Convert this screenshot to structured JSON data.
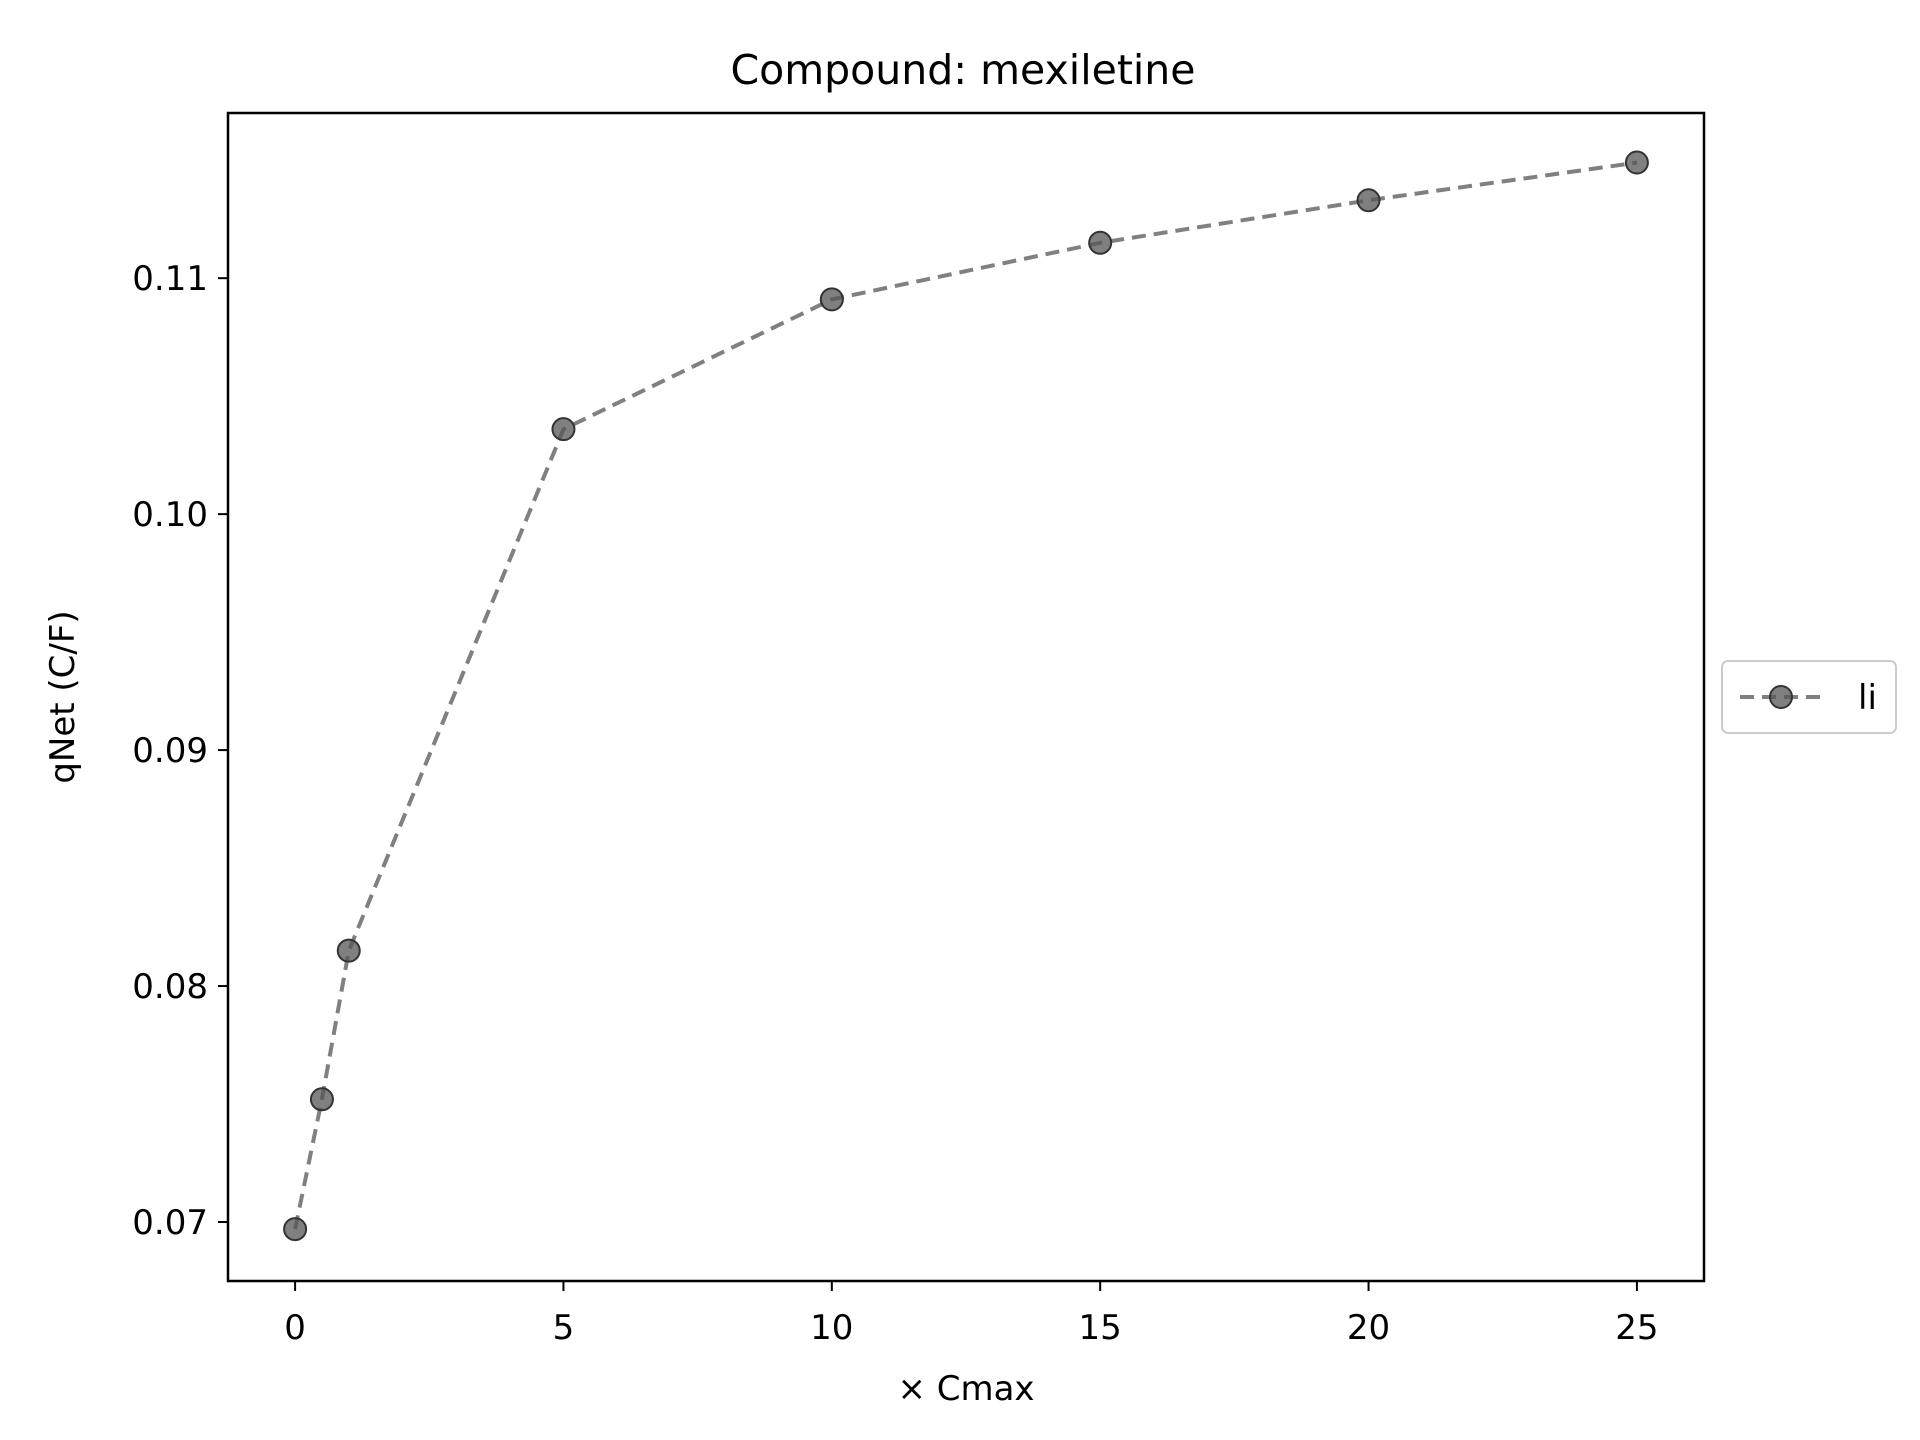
{
  "chart_data": {
    "type": "line",
    "title": "Compound: mexiletine",
    "xlabel": "× Cmax",
    "ylabel": "qNet (C/F)",
    "xlim": [
      -1.25,
      26.25
    ],
    "ylim": [
      0.0675,
      0.117
    ],
    "xticks": [
      0,
      5,
      10,
      15,
      20,
      25
    ],
    "xtick_labels": [
      "0",
      "5",
      "10",
      "15",
      "20",
      "25"
    ],
    "yticks": [
      0.07,
      0.08,
      0.09,
      0.1,
      0.11
    ],
    "ytick_labels": [
      "0.07",
      "0.08",
      "0.09",
      "0.10",
      "0.11"
    ],
    "grid": false,
    "legend_position": "outside-right",
    "series": [
      {
        "name": "li",
        "color": "#555555",
        "line_style": "dashed",
        "marker": "circle",
        "x": [
          0,
          0.5,
          1,
          5,
          10,
          15,
          20,
          25
        ],
        "y": [
          0.0697,
          0.0752,
          0.0815,
          0.1036,
          0.1091,
          0.1115,
          0.1133,
          0.1149
        ]
      }
    ]
  }
}
